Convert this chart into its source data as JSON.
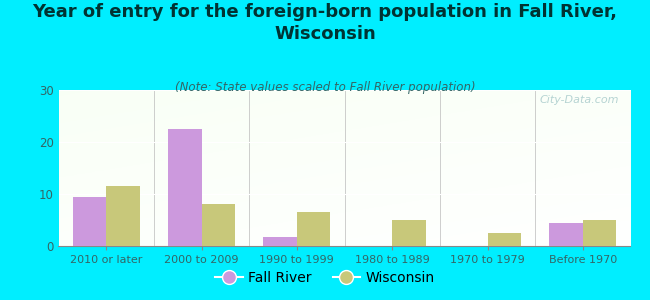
{
  "categories": [
    "2010 or later",
    "2000 to 2009",
    "1990 to 1999",
    "1980 to 1989",
    "1970 to 1979",
    "Before 1970"
  ],
  "fall_river": [
    9.5,
    22.5,
    1.8,
    0,
    0,
    4.5
  ],
  "wisconsin": [
    11.5,
    8.0,
    6.5,
    5.0,
    2.5,
    5.0
  ],
  "fall_river_color": "#cc99dd",
  "wisconsin_color": "#c8c87a",
  "background_color": "#00eeff",
  "title": "Year of entry for the foreign-born population in Fall River,\nWisconsin",
  "subtitle": "(Note: State values scaled to Fall River population)",
  "ylim": [
    0,
    30
  ],
  "yticks": [
    0,
    10,
    20,
    30
  ],
  "watermark": "City-Data.com",
  "legend_fall_river": "Fall River",
  "legend_wisconsin": "Wisconsin",
  "title_fontsize": 13,
  "subtitle_fontsize": 8.5,
  "bar_width": 0.35,
  "title_color": "#003333",
  "subtitle_color": "#336666",
  "tick_color": "#336666",
  "watermark_color": "#aacccc"
}
